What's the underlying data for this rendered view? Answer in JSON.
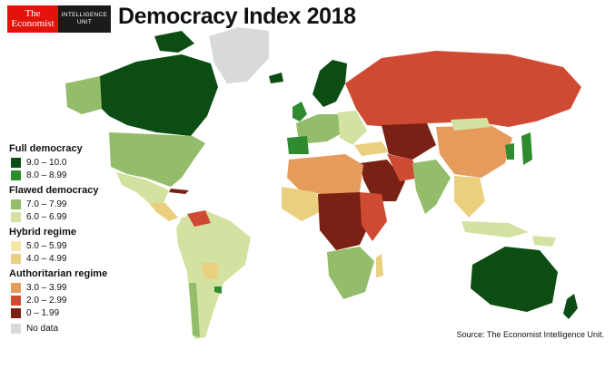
{
  "brand": {
    "economist_line1": "The",
    "economist_line2": "Economist",
    "eiu_line1": "INTELLIGENCE",
    "eiu_line2": "UNIT"
  },
  "title": "Democracy Index 2018",
  "legend": {
    "groups": [
      {
        "title": "Full democracy",
        "items": [
          {
            "label": "9.0 – 10.0",
            "color": "#0b4d12"
          },
          {
            "label": "8.0 – 8.99",
            "color": "#2e8b2e"
          }
        ]
      },
      {
        "title": "Flawed democracy",
        "items": [
          {
            "label": "7.0 – 7.99",
            "color": "#93bd6a"
          },
          {
            "label": "6.0 – 6.99",
            "color": "#d3e2a1"
          }
        ]
      },
      {
        "title": "Hybrid regime",
        "items": [
          {
            "label": "5.0 – 5.99",
            "color": "#f2e7a8"
          },
          {
            "label": "4.0 – 4.99",
            "color": "#eacf7f"
          }
        ]
      },
      {
        "title": "Authoritarian regime",
        "items": [
          {
            "label": "3.0 – 3.99",
            "color": "#e59b5c"
          },
          {
            "label": "2.0 – 2.99",
            "color": "#cf4a33"
          },
          {
            "label": "0 – 1.99",
            "color": "#7a2115"
          }
        ]
      }
    ],
    "no_data": {
      "label": "No data",
      "color": "#d9d9d9"
    }
  },
  "source": "Source: The Economist Intelligence Unit."
}
